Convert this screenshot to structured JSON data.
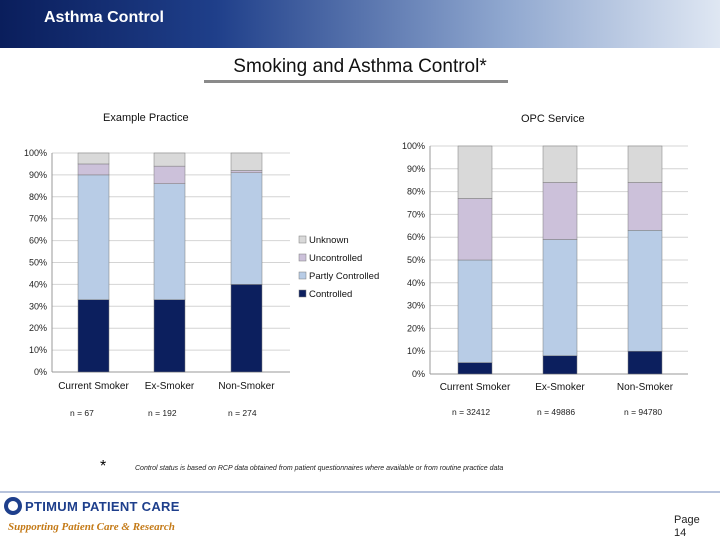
{
  "header": {
    "title": "Asthma Control"
  },
  "slide": {
    "title": "Smoking and Asthma Control*"
  },
  "colors": {
    "controlled": "#0c1f5e",
    "partly": "#b8cce6",
    "uncontrolled": "#ccc1da",
    "unknown": "#d9d9d9"
  },
  "chart_data": [
    {
      "type": "bar",
      "stacked": true,
      "title": "Example Practice",
      "categories": [
        "Current Smoker",
        "Ex-Smoker",
        "Non-Smoker"
      ],
      "n_labels": [
        "n =    67",
        "n =    192",
        "n =    274"
      ],
      "ylim": [
        0,
        100
      ],
      "y_ticks": [
        "0%",
        "10%",
        "20%",
        "30%",
        "40%",
        "50%",
        "60%",
        "70%",
        "80%",
        "90%",
        "100%"
      ],
      "grid": true,
      "legend": "right",
      "series": [
        {
          "name": "Controlled",
          "values": [
            33,
            33,
            40
          ]
        },
        {
          "name": "Partly Controlled",
          "values": [
            57,
            53,
            51
          ]
        },
        {
          "name": "Uncontrolled",
          "values": [
            5,
            8,
            1
          ]
        },
        {
          "name": "Unknown",
          "values": [
            5,
            6,
            8
          ]
        }
      ]
    },
    {
      "type": "bar",
      "stacked": true,
      "title": "OPC Service",
      "categories": [
        "Current Smoker",
        "Ex-Smoker",
        "Non-Smoker"
      ],
      "n_labels": [
        "n =  32412",
        "n =  49886",
        "n =  94780"
      ],
      "ylim": [
        0,
        100
      ],
      "y_ticks": [
        "0%",
        "10%",
        "20%",
        "30%",
        "40%",
        "50%",
        "60%",
        "70%",
        "80%",
        "90%",
        "100%"
      ],
      "grid": true,
      "series": [
        {
          "name": "Controlled",
          "values": [
            5,
            8,
            10
          ]
        },
        {
          "name": "Partly Controlled",
          "values": [
            45,
            51,
            53
          ]
        },
        {
          "name": "Uncontrolled",
          "values": [
            27,
            25,
            21
          ]
        },
        {
          "name": "Unknown",
          "values": [
            23,
            16,
            16
          ]
        }
      ]
    }
  ],
  "legend_items": [
    "Unknown",
    "Uncontrolled",
    "Partly Controlled",
    "Controlled"
  ],
  "footnote": {
    "star": "*",
    "text": "Control status is based on RCP data obtained from patient questionnaires where available or from routine practice data"
  },
  "logo": {
    "name": "PTIMUM PATIENT CARE",
    "tagline": "Supporting Patient Care & Research"
  },
  "page": {
    "label": "Page",
    "number": "14"
  }
}
